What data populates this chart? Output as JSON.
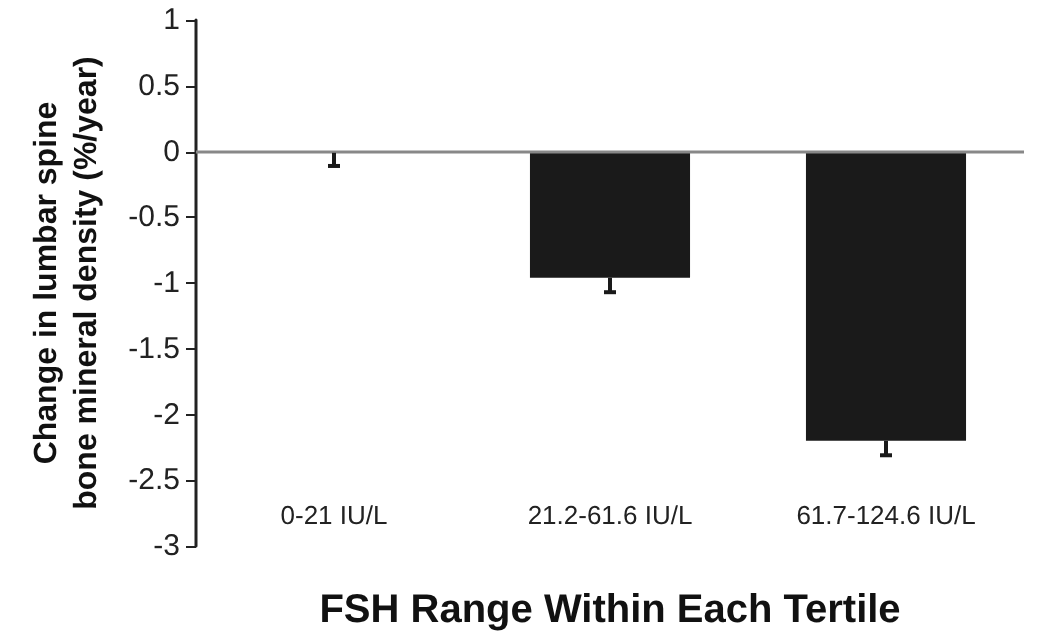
{
  "chart_data": {
    "type": "bar",
    "xlabel": "FSH Range Within Each Tertile",
    "ylabel": "Change in lumbar spine\nbone mineral density (%/year)",
    "categories": [
      "0-21 IU/L",
      "21.2-61.6 IU/L",
      "61.7-124.6 IU/L"
    ],
    "values": [
      -0.01,
      -0.96,
      -2.2
    ],
    "errors": [
      [
        -0.11,
        -0.01
      ],
      [
        -1.07,
        -0.96
      ],
      [
        -2.31,
        -2.2
      ]
    ],
    "color": "#1a1a1a",
    "ylim": [
      -3,
      1
    ],
    "yticks": [
      -3,
      -2.5,
      -2,
      -1.5,
      -1,
      -0.5,
      0,
      0.5,
      1
    ],
    "ref_lines": [
      {
        "axis": "y",
        "value": 0,
        "color": "#888888"
      }
    ],
    "grid": false
  }
}
